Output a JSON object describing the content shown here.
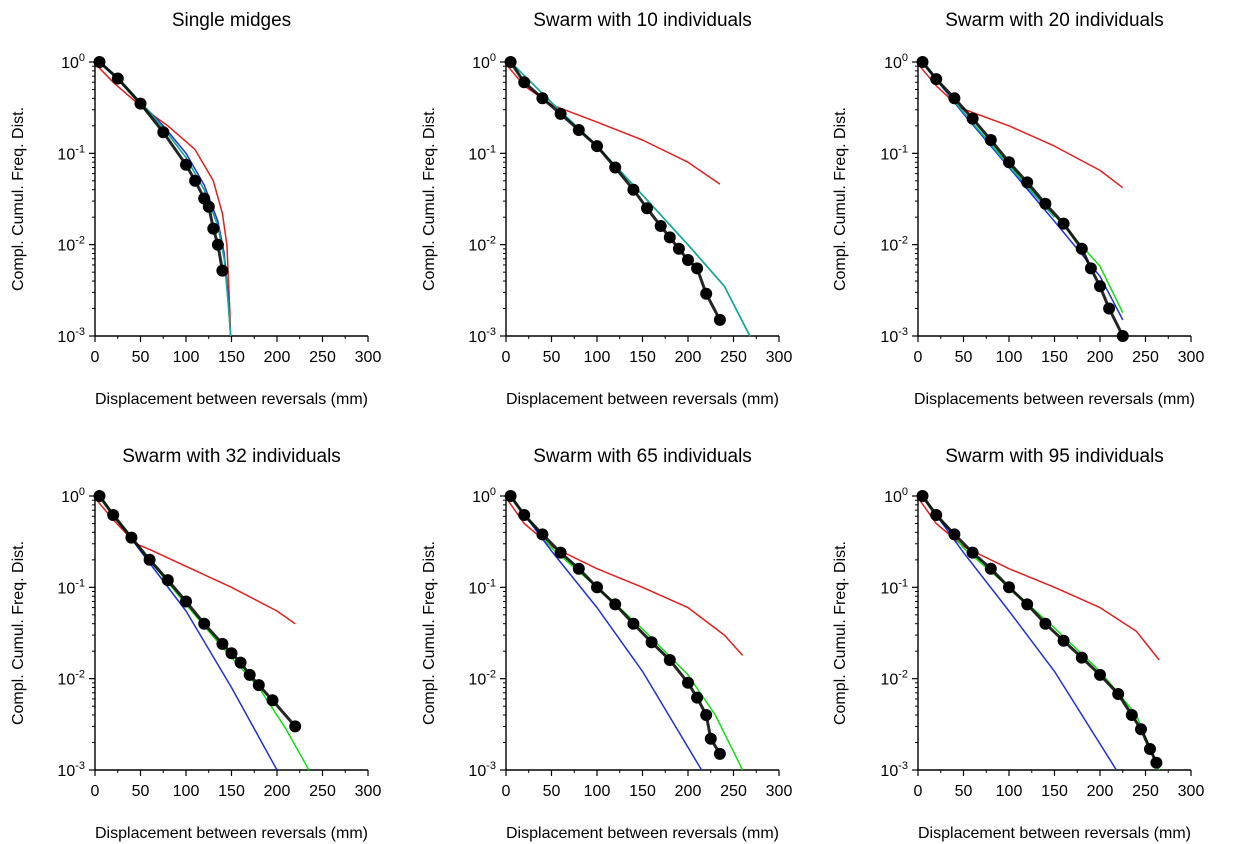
{
  "colors": {
    "red_fit": "#e0201c",
    "blue_fit": "#2030d8",
    "green_fit": "#10e010",
    "teal_fit": "#12a8a0",
    "data_marker": "#000000",
    "axis": "#000000"
  },
  "chart_data": [
    {
      "type": "scatter",
      "title": "Single midges",
      "xlabel": "Displacement between reversals (mm)",
      "ylabel": "Compl. Cumul. Freq. Dist.",
      "xlim": [
        0,
        300
      ],
      "ylim": [
        0.001,
        1
      ],
      "yscale": "log",
      "xticks": [
        "0",
        "50",
        "100",
        "150",
        "200",
        "250",
        "300"
      ],
      "yticks": [
        {
          "base": "10",
          "exp": "0"
        },
        {
          "base": "10",
          "exp": "-1"
        },
        {
          "base": "10",
          "exp": "-2"
        },
        {
          "base": "10",
          "exp": "-3"
        }
      ],
      "grid": false,
      "series": [
        {
          "color": "red",
          "x": [
            2,
            20,
            50,
            80,
            110,
            130,
            140,
            145,
            148,
            149
          ],
          "y": [
            0.92,
            0.6,
            0.33,
            0.2,
            0.11,
            0.05,
            0.022,
            0.01,
            0.002,
            0.001
          ]
        },
        {
          "color": "blue",
          "x": [
            5,
            25,
            50,
            75,
            100,
            120,
            135,
            142,
            146,
            149
          ],
          "y": [
            1.0,
            0.66,
            0.36,
            0.2,
            0.1,
            0.045,
            0.018,
            0.008,
            0.003,
            0.001
          ]
        },
        {
          "color": "green",
          "x": [
            5,
            25,
            50,
            75,
            100,
            120,
            135,
            142,
            146,
            149
          ],
          "y": [
            1.0,
            0.67,
            0.36,
            0.19,
            0.09,
            0.04,
            0.016,
            0.007,
            0.0025,
            0.001
          ]
        },
        {
          "color": "teal",
          "x": [
            5,
            25,
            50,
            75,
            100,
            120,
            135,
            142,
            146,
            149
          ],
          "y": [
            1.0,
            0.66,
            0.35,
            0.19,
            0.09,
            0.04,
            0.016,
            0.007,
            0.0025,
            0.001
          ]
        },
        {
          "color": "data",
          "x": [
            5,
            25,
            50,
            75,
            100,
            110,
            120,
            125,
            130,
            135,
            140
          ],
          "y": [
            1.0,
            0.66,
            0.35,
            0.17,
            0.075,
            0.05,
            0.032,
            0.026,
            0.015,
            0.01,
            0.0052
          ]
        }
      ]
    },
    {
      "type": "scatter",
      "title": "Swarm with 10 individuals",
      "xlabel": "Displacement between reversals (mm)",
      "ylabel": "Compl. Cumul. Freq. Dist.",
      "xlim": [
        0,
        300
      ],
      "ylim": [
        0.001,
        1
      ],
      "yscale": "log",
      "xticks": [
        "0",
        "50",
        "100",
        "150",
        "200",
        "250",
        "300"
      ],
      "yticks": [
        {
          "base": "10",
          "exp": "0"
        },
        {
          "base": "10",
          "exp": "-1"
        },
        {
          "base": "10",
          "exp": "-2"
        },
        {
          "base": "10",
          "exp": "-3"
        }
      ],
      "grid": false,
      "series": [
        {
          "color": "red",
          "x": [
            2,
            20,
            50,
            100,
            150,
            200,
            235
          ],
          "y": [
            0.9,
            0.55,
            0.34,
            0.22,
            0.14,
            0.08,
            0.046
          ]
        },
        {
          "color": "blue",
          "x": [
            5,
            50,
            100,
            150,
            200,
            240,
            268
          ],
          "y": [
            1.0,
            0.36,
            0.12,
            0.035,
            0.01,
            0.0035,
            0.001
          ]
        },
        {
          "color": "green",
          "x": [
            5,
            50,
            100,
            150,
            200,
            240,
            268
          ],
          "y": [
            1.0,
            0.36,
            0.12,
            0.035,
            0.01,
            0.0035,
            0.001
          ]
        },
        {
          "color": "teal",
          "x": [
            5,
            50,
            100,
            150,
            200,
            240,
            268
          ],
          "y": [
            1.0,
            0.36,
            0.12,
            0.035,
            0.01,
            0.0035,
            0.001
          ]
        },
        {
          "color": "data",
          "x": [
            5,
            20,
            40,
            60,
            80,
            100,
            120,
            140,
            155,
            170,
            180,
            190,
            200,
            210,
            220,
            235
          ],
          "y": [
            1.0,
            0.6,
            0.4,
            0.27,
            0.18,
            0.12,
            0.07,
            0.04,
            0.025,
            0.016,
            0.012,
            0.009,
            0.0068,
            0.0055,
            0.0029,
            0.0015
          ]
        }
      ]
    },
    {
      "type": "scatter",
      "title": "Swarm with 20 individuals",
      "xlabel": "Displacements between reversals (mm)",
      "ylabel": "Compl. Cumul. Freq. Dist.",
      "xlim": [
        0,
        300
      ],
      "ylim": [
        0.001,
        1
      ],
      "yscale": "log",
      "xticks": [
        "0",
        "50",
        "100",
        "150",
        "200",
        "250",
        "300"
      ],
      "yticks": [
        {
          "base": "10",
          "exp": "0"
        },
        {
          "base": "10",
          "exp": "-1"
        },
        {
          "base": "10",
          "exp": "-2"
        },
        {
          "base": "10",
          "exp": "-3"
        }
      ],
      "grid": false,
      "series": [
        {
          "color": "red",
          "x": [
            2,
            20,
            45,
            60,
            100,
            150,
            200,
            225
          ],
          "y": [
            0.9,
            0.55,
            0.32,
            0.28,
            0.2,
            0.12,
            0.065,
            0.042
          ]
        },
        {
          "color": "blue",
          "x": [
            5,
            50,
            100,
            150,
            200,
            225
          ],
          "y": [
            1.0,
            0.27,
            0.07,
            0.018,
            0.0045,
            0.0015
          ]
        },
        {
          "color": "green",
          "x": [
            5,
            50,
            100,
            150,
            200,
            225
          ],
          "y": [
            1.0,
            0.28,
            0.075,
            0.021,
            0.0058,
            0.0018
          ]
        },
        {
          "color": "teal",
          "x": [
            5,
            50,
            100,
            150
          ],
          "y": [
            1.0,
            0.28,
            0.072,
            0.02
          ]
        },
        {
          "color": "data",
          "x": [
            5,
            20,
            40,
            60,
            80,
            100,
            120,
            140,
            160,
            180,
            190,
            200,
            210,
            225
          ],
          "y": [
            1.0,
            0.65,
            0.4,
            0.24,
            0.14,
            0.08,
            0.048,
            0.028,
            0.017,
            0.009,
            0.0055,
            0.0035,
            0.002,
            0.001
          ]
        }
      ]
    },
    {
      "type": "scatter",
      "title": "Swarm with 32 individuals",
      "xlabel": "Displacement between reversals (mm)",
      "ylabel": "Compl. Cumul. Freq. Dist.",
      "xlim": [
        0,
        300
      ],
      "ylim": [
        0.001,
        1
      ],
      "yscale": "log",
      "xticks": [
        "0",
        "50",
        "100",
        "150",
        "200",
        "250",
        "300"
      ],
      "yticks": [
        {
          "base": "10",
          "exp": "0"
        },
        {
          "base": "10",
          "exp": "-1"
        },
        {
          "base": "10",
          "exp": "-2"
        },
        {
          "base": "10",
          "exp": "-3"
        }
      ],
      "grid": false,
      "series": [
        {
          "color": "red",
          "x": [
            2,
            20,
            45,
            60,
            100,
            150,
            200,
            220
          ],
          "y": [
            0.9,
            0.55,
            0.3,
            0.26,
            0.17,
            0.1,
            0.055,
            0.04
          ]
        },
        {
          "color": "blue",
          "x": [
            5,
            50,
            100,
            150,
            200
          ],
          "y": [
            1.0,
            0.25,
            0.055,
            0.008,
            0.001
          ]
        },
        {
          "color": "green",
          "x": [
            5,
            50,
            100,
            140,
            180,
            210,
            235
          ],
          "y": [
            1.0,
            0.26,
            0.065,
            0.022,
            0.008,
            0.0028,
            0.001
          ]
        },
        {
          "color": "data",
          "x": [
            5,
            20,
            40,
            60,
            80,
            100,
            120,
            140,
            150,
            160,
            170,
            180,
            195,
            220
          ],
          "y": [
            1.0,
            0.62,
            0.35,
            0.2,
            0.12,
            0.07,
            0.04,
            0.024,
            0.019,
            0.015,
            0.011,
            0.0085,
            0.0058,
            0.003
          ]
        }
      ]
    },
    {
      "type": "scatter",
      "title": "Swarm with 65 individuals",
      "xlabel": "Displacement between reversals (mm)",
      "ylabel": "Compl. Cumul. Freq. Dist.",
      "xlim": [
        0,
        300
      ],
      "ylim": [
        0.001,
        1
      ],
      "yscale": "log",
      "xticks": [
        "0",
        "50",
        "100",
        "150",
        "200",
        "250",
        "300"
      ],
      "yticks": [
        {
          "base": "10",
          "exp": "0"
        },
        {
          "base": "10",
          "exp": "-1"
        },
        {
          "base": "10",
          "exp": "-2"
        },
        {
          "base": "10",
          "exp": "-3"
        }
      ],
      "grid": false,
      "series": [
        {
          "color": "red",
          "x": [
            2,
            20,
            50,
            100,
            150,
            200,
            240,
            260
          ],
          "y": [
            0.9,
            0.5,
            0.28,
            0.16,
            0.1,
            0.06,
            0.03,
            0.018
          ]
        },
        {
          "color": "blue",
          "x": [
            5,
            50,
            100,
            150,
            215
          ],
          "y": [
            1.0,
            0.25,
            0.06,
            0.012,
            0.001
          ]
        },
        {
          "color": "green",
          "x": [
            5,
            50,
            100,
            150,
            200,
            230,
            260
          ],
          "y": [
            1.0,
            0.27,
            0.1,
            0.035,
            0.011,
            0.004,
            0.001
          ]
        },
        {
          "color": "data",
          "x": [
            5,
            20,
            40,
            60,
            80,
            100,
            120,
            140,
            160,
            180,
            200,
            210,
            220,
            225,
            235
          ],
          "y": [
            1.0,
            0.62,
            0.38,
            0.24,
            0.16,
            0.1,
            0.065,
            0.04,
            0.025,
            0.016,
            0.009,
            0.0062,
            0.004,
            0.0022,
            0.0015
          ]
        }
      ]
    },
    {
      "type": "scatter",
      "title": "Swarm with 95 individuals",
      "xlabel": "Displacement between reversals (mm)",
      "ylabel": "Compl. Cumul. Freq. Dist.",
      "xlim": [
        0,
        300
      ],
      "ylim": [
        0.001,
        1
      ],
      "yscale": "log",
      "xticks": [
        "0",
        "50",
        "100",
        "150",
        "200",
        "250",
        "300"
      ],
      "yticks": [
        {
          "base": "10",
          "exp": "0"
        },
        {
          "base": "10",
          "exp": "-1"
        },
        {
          "base": "10",
          "exp": "-2"
        },
        {
          "base": "10",
          "exp": "-3"
        }
      ],
      "grid": false,
      "series": [
        {
          "color": "red",
          "x": [
            2,
            20,
            50,
            100,
            150,
            200,
            240,
            265
          ],
          "y": [
            0.9,
            0.5,
            0.28,
            0.16,
            0.1,
            0.06,
            0.033,
            0.016
          ]
        },
        {
          "color": "blue",
          "x": [
            5,
            50,
            100,
            150,
            218
          ],
          "y": [
            1.0,
            0.24,
            0.055,
            0.012,
            0.001
          ]
        },
        {
          "color": "green",
          "x": [
            5,
            50,
            100,
            150,
            200,
            240,
            265
          ],
          "y": [
            1.0,
            0.27,
            0.1,
            0.036,
            0.012,
            0.004,
            0.001
          ]
        },
        {
          "color": "data",
          "x": [
            5,
            20,
            40,
            60,
            80,
            100,
            120,
            140,
            160,
            180,
            200,
            220,
            235,
            245,
            255,
            262
          ],
          "y": [
            1.0,
            0.62,
            0.38,
            0.24,
            0.16,
            0.1,
            0.065,
            0.04,
            0.026,
            0.017,
            0.011,
            0.0068,
            0.004,
            0.0028,
            0.0017,
            0.0012
          ]
        }
      ]
    }
  ]
}
